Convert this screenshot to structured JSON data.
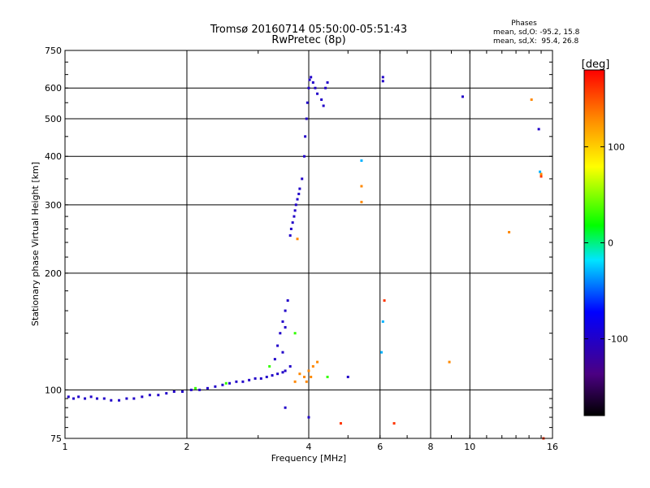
{
  "chart_data": {
    "type": "scatter",
    "title": "Tromsø 20160714 05:50:00-05:51:43",
    "subtitle": "RwPretec (8p)",
    "xlabel": "Frequency [MHz]",
    "ylabel": "Stationary phase Virtual Height [km]",
    "x_scale": "log",
    "y_scale": "log",
    "xlim": [
      1,
      16
    ],
    "ylim": [
      75,
      750
    ],
    "xticks": [
      1,
      2,
      4,
      6,
      8,
      10,
      16
    ],
    "yticks": [
      75,
      100,
      200,
      300,
      400,
      500,
      600,
      750
    ],
    "grid": true,
    "phases_box": {
      "title": "Phases",
      "line_o": "mean, sd,O: -95.2, 15.8",
      "line_x": "mean, sd,X:  95.4, 26.8"
    },
    "colorbar": {
      "label": "[deg]",
      "range": [
        -180,
        180
      ],
      "ticks": [
        100,
        0,
        -100
      ]
    },
    "series": [
      {
        "phase_deg": -100,
        "points": [
          [
            1.02,
            96
          ],
          [
            1.05,
            95
          ],
          [
            1.08,
            96
          ],
          [
            1.12,
            95
          ],
          [
            1.16,
            96
          ],
          [
            1.2,
            95
          ],
          [
            1.25,
            95
          ],
          [
            1.3,
            94
          ],
          [
            1.36,
            94
          ],
          [
            1.42,
            95
          ],
          [
            1.48,
            95
          ],
          [
            1.55,
            96
          ],
          [
            1.62,
            97
          ],
          [
            1.7,
            97
          ],
          [
            1.78,
            98
          ],
          [
            1.86,
            99
          ],
          [
            1.95,
            99
          ],
          [
            2.05,
            100
          ],
          [
            2.15,
            100
          ],
          [
            2.25,
            101
          ],
          [
            2.35,
            102
          ],
          [
            2.45,
            103
          ],
          [
            2.55,
            104
          ],
          [
            2.65,
            105
          ],
          [
            2.75,
            105
          ],
          [
            2.85,
            106
          ],
          [
            2.95,
            107
          ],
          [
            3.05,
            107
          ],
          [
            3.15,
            108
          ],
          [
            3.25,
            109
          ],
          [
            3.35,
            110
          ],
          [
            3.45,
            111
          ],
          [
            3.5,
            112
          ],
          [
            3.3,
            120
          ],
          [
            3.35,
            130
          ],
          [
            3.4,
            140
          ],
          [
            3.45,
            150
          ],
          [
            3.5,
            160
          ],
          [
            3.55,
            170
          ],
          [
            3.5,
            145
          ],
          [
            3.45,
            125
          ],
          [
            3.6,
            115
          ],
          [
            3.6,
            250
          ],
          [
            3.65,
            270
          ],
          [
            3.7,
            290
          ],
          [
            3.75,
            310
          ],
          [
            3.8,
            330
          ],
          [
            3.85,
            350
          ],
          [
            3.9,
            400
          ],
          [
            3.92,
            450
          ],
          [
            3.95,
            500
          ],
          [
            3.97,
            550
          ],
          [
            4.0,
            600
          ],
          [
            4.02,
            630
          ],
          [
            4.05,
            640
          ],
          [
            4.1,
            620
          ],
          [
            4.15,
            600
          ],
          [
            4.2,
            580
          ],
          [
            4.3,
            560
          ],
          [
            4.35,
            540
          ],
          [
            4.4,
            600
          ],
          [
            4.45,
            620
          ],
          [
            3.62,
            260
          ],
          [
            3.68,
            280
          ],
          [
            3.72,
            300
          ],
          [
            3.78,
            320
          ],
          [
            6.1,
            640
          ],
          [
            6.1,
            625
          ],
          [
            9.6,
            570
          ],
          [
            14.8,
            470
          ],
          [
            3.5,
            90
          ],
          [
            4.0,
            85
          ],
          [
            5.0,
            108
          ]
        ]
      },
      {
        "phase_deg": 130,
        "points": [
          [
            3.8,
            110
          ],
          [
            3.9,
            108
          ],
          [
            4.0,
            112
          ],
          [
            4.1,
            115
          ],
          [
            4.2,
            118
          ],
          [
            3.7,
            105
          ],
          [
            3.95,
            105
          ],
          [
            4.05,
            108
          ],
          [
            5.4,
            335
          ],
          [
            5.4,
            305
          ],
          [
            3.75,
            245
          ],
          [
            8.9,
            118
          ],
          [
            12.5,
            255
          ],
          [
            14.2,
            560
          ],
          [
            15.0,
            360
          ]
        ]
      },
      {
        "phase_deg": 160,
        "points": [
          [
            4.8,
            82
          ],
          [
            6.5,
            82
          ],
          [
            6.15,
            170
          ],
          [
            15.0,
            355
          ],
          [
            15.2,
            75
          ]
        ]
      },
      {
        "phase_deg": 30,
        "points": [
          [
            2.1,
            101
          ],
          [
            2.5,
            104
          ],
          [
            3.2,
            115
          ],
          [
            3.7,
            140
          ],
          [
            4.45,
            108
          ]
        ]
      },
      {
        "phase_deg": -30,
        "points": [
          [
            5.4,
            390
          ],
          [
            6.1,
            150
          ],
          [
            6.05,
            125
          ],
          [
            14.9,
            365
          ]
        ]
      }
    ]
  }
}
